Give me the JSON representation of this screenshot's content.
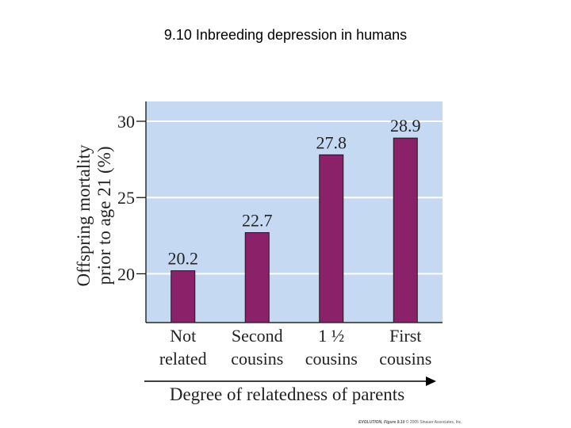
{
  "title": "9.10  Inbreeding depression in humans",
  "chart_data": {
    "type": "bar",
    "categories": [
      [
        "Not",
        "related"
      ],
      [
        "Second",
        "cousins"
      ],
      [
        "1 ½",
        "cousins"
      ],
      [
        "First",
        "cousins"
      ]
    ],
    "values": [
      20.2,
      22.7,
      27.8,
      28.9
    ],
    "value_labels": [
      "20.2",
      "22.7",
      "27.8",
      "28.9"
    ],
    "ylabel_lines": [
      "Offspring mortality",
      "prior to age 21 (%)"
    ],
    "xlabel": "Degree of relatedness of parents",
    "yticks": [
      20,
      25,
      30
    ],
    "ylim": [
      16.8,
      31.3
    ],
    "bar_color": "#8b2269",
    "plot_bg": "#c5daf2",
    "grid": true
  },
  "credit": {
    "bold": "EVOLUTION, Figure 9.10",
    "rest": " © 2005 Sinauer Associates, Inc."
  }
}
